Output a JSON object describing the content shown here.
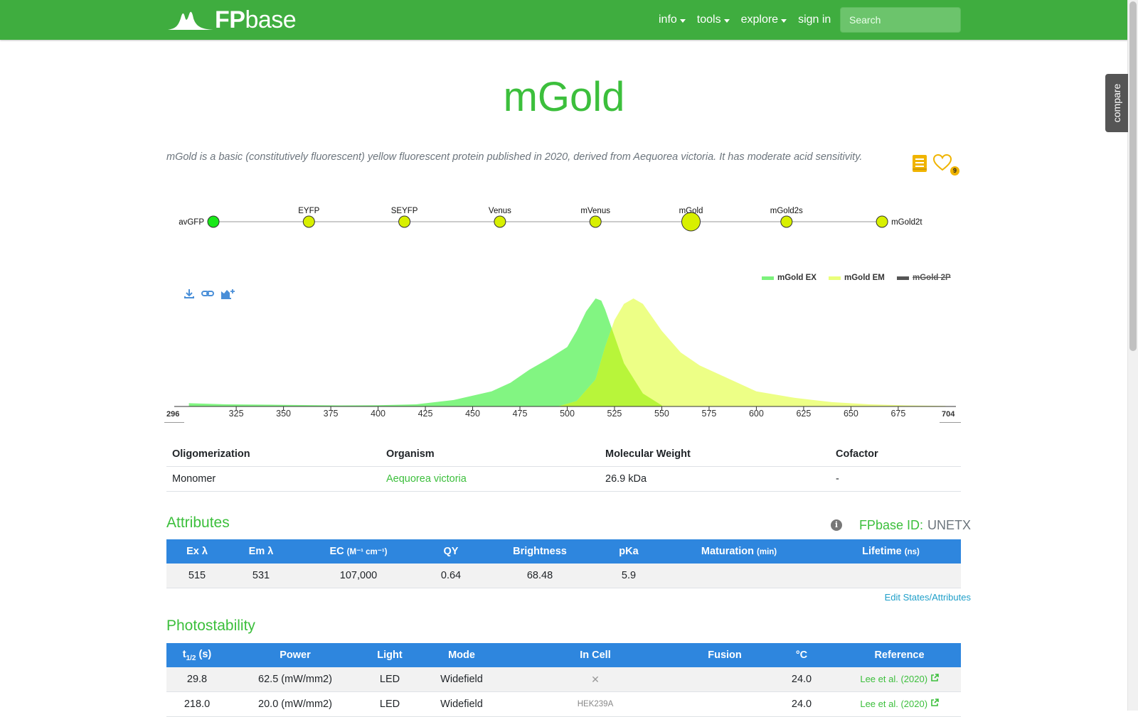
{
  "nav": {
    "brand": "FPbase",
    "brand_bold": "FP",
    "brand_light": "base",
    "items": [
      {
        "label": "info",
        "dropdown": true
      },
      {
        "label": "tools",
        "dropdown": true
      },
      {
        "label": "explore",
        "dropdown": true
      },
      {
        "label": "sign in",
        "dropdown": false
      }
    ],
    "search_placeholder": "Search"
  },
  "compare_tab": "compare",
  "protein": {
    "name": "mGold",
    "description": "mGold is a basic (constitutively fluorescent) yellow fluorescent protein published in 2020, derived from Aequorea victoria. It has moderate acid sensitivity.",
    "favorite_count": "9"
  },
  "lineage": {
    "nodes": [
      {
        "name": "avGFP",
        "color": "#18e818",
        "current": false
      },
      {
        "name": "EYFP",
        "color": "#d8f000",
        "current": false
      },
      {
        "name": "SEYFP",
        "color": "#d8f000",
        "current": false
      },
      {
        "name": "Venus",
        "color": "#d8f000",
        "current": false
      },
      {
        "name": "mVenus",
        "color": "#d8f000",
        "current": false
      },
      {
        "name": "mGold",
        "color": "#d8f000",
        "current": true
      },
      {
        "name": "mGold2s",
        "color": "#d8f000",
        "current": false
      },
      {
        "name": "mGold2t",
        "color": "#d8f000",
        "current": false
      }
    ]
  },
  "spectra": {
    "legend": [
      {
        "label": "mGold EX",
        "color": "#7cf27c",
        "disabled": false
      },
      {
        "label": "mGold EM",
        "color": "#eaff7a",
        "disabled": false
      },
      {
        "label": "mGold 2P",
        "color": "#555555",
        "disabled": true
      }
    ],
    "x_min_label": "296",
    "x_max_label": "704",
    "ticks": [
      "325",
      "350",
      "375",
      "400",
      "425",
      "450",
      "475",
      "500",
      "525",
      "550",
      "575",
      "600",
      "625",
      "650",
      "675"
    ],
    "ex_color": "#82f582",
    "em_color": "#ecff80",
    "overlap_color": "#b8f53a"
  },
  "chart_data": {
    "type": "area",
    "xlabel": "",
    "ylabel": "",
    "xlim": [
      296,
      704
    ],
    "ylim": [
      0,
      1
    ],
    "series": [
      {
        "name": "mGold EX",
        "x": [
          300,
          320,
          350,
          380,
          400,
          420,
          440,
          460,
          470,
          480,
          490,
          500,
          505,
          510,
          515,
          518,
          520,
          525,
          530,
          540,
          550
        ],
        "values": [
          0.03,
          0.02,
          0.015,
          0.01,
          0.012,
          0.02,
          0.06,
          0.14,
          0.22,
          0.34,
          0.44,
          0.55,
          0.7,
          0.88,
          1.0,
          0.98,
          0.9,
          0.65,
          0.4,
          0.12,
          0.01
        ]
      },
      {
        "name": "mGold EM",
        "x": [
          495,
          505,
          515,
          520,
          525,
          530,
          535,
          540,
          550,
          560,
          570,
          580,
          600,
          620,
          640,
          660,
          680,
          700
        ],
        "values": [
          0.0,
          0.05,
          0.25,
          0.55,
          0.8,
          0.95,
          1.0,
          0.95,
          0.7,
          0.5,
          0.38,
          0.3,
          0.14,
          0.08,
          0.04,
          0.02,
          0.01,
          0.005
        ]
      }
    ]
  },
  "info_table": {
    "headers": [
      "Oligomerization",
      "Organism",
      "Molecular Weight",
      "Cofactor"
    ],
    "row": [
      "Monomer",
      "Aequorea victoria",
      "26.9 kDa",
      "-"
    ]
  },
  "attributes": {
    "title": "Attributes",
    "fpbase_id_label": "FPbase ID:",
    "fpbase_id": "UNETX",
    "headers": [
      {
        "main": "Ex λ",
        "sub": ""
      },
      {
        "main": "Em λ",
        "sub": ""
      },
      {
        "main": "EC",
        "sub": "(M⁻¹ cm⁻¹)"
      },
      {
        "main": "QY",
        "sub": ""
      },
      {
        "main": "Brightness",
        "sub": ""
      },
      {
        "main": "pKa",
        "sub": ""
      },
      {
        "main": "Maturation",
        "sub": "(min)"
      },
      {
        "main": "Lifetime",
        "sub": "(ns)"
      }
    ],
    "row": [
      "515",
      "531",
      "107,000",
      "0.64",
      "68.48",
      "5.9",
      "",
      ""
    ],
    "edit_link": "Edit States/Attributes"
  },
  "photostability": {
    "title": "Photostability",
    "headers": [
      "t1/2 (s)",
      "Power",
      "Light",
      "Mode",
      "In Cell",
      "Fusion",
      "°C",
      "Reference"
    ],
    "header_t": "t",
    "header_t_sub": "1/2",
    "header_t_unit": "(s)",
    "rows": [
      {
        "t": "29.8",
        "power": "62.5 (mW/mm2)",
        "light": "LED",
        "mode": "Widefield",
        "in_cell": "✕",
        "fusion": "",
        "temp": "24.0",
        "reference": "Lee et al. (2020)"
      },
      {
        "t": "218.0",
        "power": "20.0 (mW/mm2)",
        "light": "LED",
        "mode": "Widefield",
        "in_cell": "HEK239A",
        "fusion": "",
        "temp": "24.0",
        "reference": "Lee et al. (2020)"
      }
    ]
  }
}
